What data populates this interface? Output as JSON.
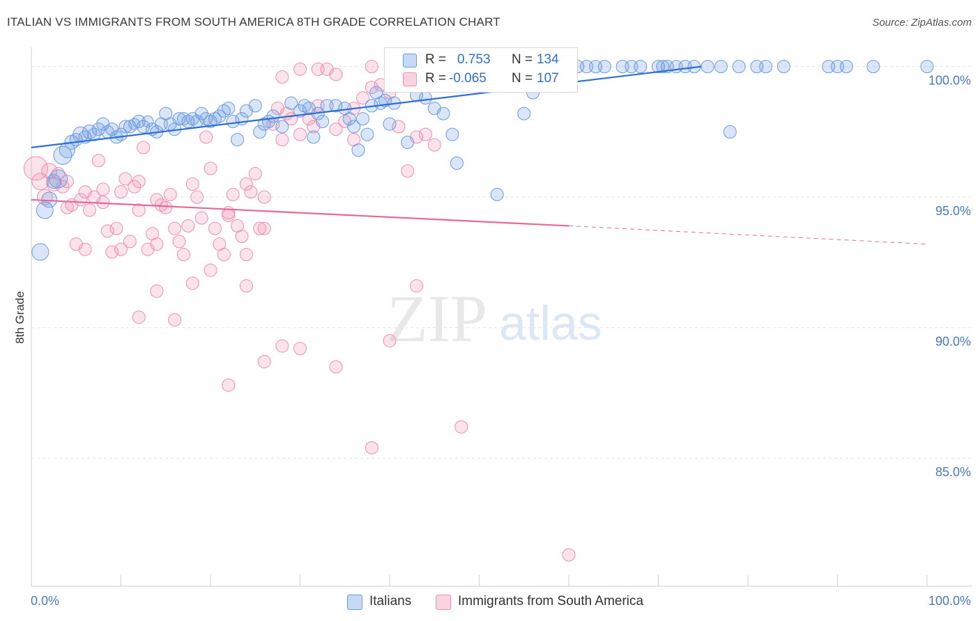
{
  "header": {
    "title": "ITALIAN VS IMMIGRANTS FROM SOUTH AMERICA 8TH GRADE CORRELATION CHART",
    "source": "Source: ZipAtlas.com"
  },
  "legend_stats": {
    "r_label": "R =",
    "n_label": "N =",
    "italians": {
      "r": "0.753",
      "n": "134"
    },
    "immigrants": {
      "r": "-0.065",
      "n": "107"
    }
  },
  "bottom_legend": {
    "italians": "Italians",
    "immigrants": "Immigrants from South America"
  },
  "watermark": {
    "zip": "ZIP",
    "atlas": "atlas"
  },
  "colors": {
    "blue": "#6b9be0",
    "blue_line": "#2f6fd3",
    "pink": "#ee8fb0",
    "pink_line": "#e8669a",
    "tick_label": "#4a78c8"
  },
  "chart_data": {
    "type": "scatter",
    "title": "ITALIAN VS IMMIGRANTS FROM SOUTH AMERICA 8TH GRADE CORRELATION CHART",
    "ylabel": "8th Grade",
    "xlabel": "",
    "xlim": [
      0,
      100
    ],
    "ylim": [
      80.1,
      100.95
    ],
    "x_tick_labels": [
      {
        "value": 0,
        "label": "0.0%"
      },
      {
        "value": 100,
        "label": "100.0%"
      }
    ],
    "x_minor_ticks": [
      0,
      10,
      20,
      30,
      40,
      50,
      60,
      70,
      80,
      90,
      100
    ],
    "y_ticks": [
      {
        "value": 100,
        "label": "100.0%"
      },
      {
        "value": 95,
        "label": "95.0%"
      },
      {
        "value": 90,
        "label": "90.0%"
      },
      {
        "value": 85,
        "label": "85.0%"
      }
    ],
    "grid": true,
    "legend": "top-center",
    "series": [
      {
        "name": "Italians",
        "color": "#6b9be0",
        "trend": {
          "x0": 0,
          "y0": 96.9,
          "x1": 74.8,
          "y1": 100.0,
          "style": "solid"
        },
        "points": [
          [
            1,
            92.9,
            12
          ],
          [
            1.5,
            94.5,
            12
          ],
          [
            2,
            94.9,
            11
          ],
          [
            2.5,
            95.6,
            10
          ],
          [
            3,
            95.7,
            13
          ],
          [
            3.5,
            96.6,
            13
          ],
          [
            4,
            96.8,
            11
          ],
          [
            4.5,
            97.1,
            10
          ],
          [
            5,
            97.2,
            9
          ],
          [
            5.5,
            97.4,
            11
          ],
          [
            6,
            97.3,
            9
          ],
          [
            6.5,
            97.5,
            10
          ],
          [
            7,
            97.4,
            9
          ],
          [
            7.5,
            97.6,
            9
          ],
          [
            8,
            97.8,
            9
          ],
          [
            8.5,
            97.5,
            9
          ],
          [
            9,
            97.6,
            9
          ],
          [
            9.5,
            97.3,
            9
          ],
          [
            10,
            97.4,
            9
          ],
          [
            10.5,
            97.7,
            9
          ],
          [
            11,
            97.7,
            9
          ],
          [
            11.5,
            97.8,
            8
          ],
          [
            12,
            97.9,
            9
          ],
          [
            12.5,
            97.7,
            9
          ],
          [
            13,
            97.9,
            8
          ],
          [
            13.5,
            97.6,
            9
          ],
          [
            14,
            97.5,
            9
          ],
          [
            14.5,
            97.8,
            9
          ],
          [
            15,
            98.2,
            9
          ],
          [
            15.5,
            97.8,
            9
          ],
          [
            16,
            97.6,
            9
          ],
          [
            16.5,
            98.0,
            9
          ],
          [
            17,
            98.0,
            9
          ],
          [
            17.5,
            97.9,
            9
          ],
          [
            18,
            98.0,
            9
          ],
          [
            18.5,
            97.9,
            9
          ],
          [
            19,
            98.2,
            9
          ],
          [
            19.5,
            98.0,
            9
          ],
          [
            20,
            97.9,
            9
          ],
          [
            20.5,
            98.0,
            9
          ],
          [
            21,
            98.1,
            9
          ],
          [
            21.5,
            98.3,
            9
          ],
          [
            22,
            98.4,
            9
          ],
          [
            22.5,
            97.9,
            9
          ],
          [
            23,
            97.2,
            9
          ],
          [
            23.5,
            98.0,
            9
          ],
          [
            24,
            98.3,
            9
          ],
          [
            25,
            98.5,
            9
          ],
          [
            25.5,
            97.5,
            9
          ],
          [
            26,
            97.8,
            9
          ],
          [
            26.5,
            97.9,
            9
          ],
          [
            27,
            98.1,
            9
          ],
          [
            28,
            97.7,
            9
          ],
          [
            29,
            98.6,
            9
          ],
          [
            30,
            98.3,
            9
          ],
          [
            30.5,
            98.5,
            9
          ],
          [
            31,
            98.4,
            9
          ],
          [
            31.5,
            97.3,
            9
          ],
          [
            32,
            98.2,
            9
          ],
          [
            32.5,
            97.9,
            9
          ],
          [
            33,
            98.5,
            9
          ],
          [
            34,
            98.5,
            9
          ],
          [
            35,
            98.4,
            9
          ],
          [
            35.5,
            98.0,
            9
          ],
          [
            36,
            97.7,
            9
          ],
          [
            36.5,
            96.8,
            9
          ],
          [
            37,
            98.0,
            9
          ],
          [
            37.5,
            97.4,
            9
          ],
          [
            38,
            98.5,
            9
          ],
          [
            38.5,
            99.0,
            9
          ],
          [
            39,
            98.6,
            9
          ],
          [
            39.5,
            98.7,
            9
          ],
          [
            40,
            97.8,
            9
          ],
          [
            40.5,
            98.6,
            9
          ],
          [
            41,
            99.3,
            9
          ],
          [
            42,
            97.1,
            9
          ],
          [
            43,
            98.9,
            9
          ],
          [
            44,
            98.8,
            9
          ],
          [
            45,
            98.4,
            9
          ],
          [
            46,
            98.2,
            9
          ],
          [
            47,
            97.4,
            9
          ],
          [
            47.5,
            96.3,
            9
          ],
          [
            48,
            99.9,
            9
          ],
          [
            49,
            99.7,
            9
          ],
          [
            50,
            100.0,
            9
          ],
          [
            51,
            100.0,
            9
          ],
          [
            52,
            95.1,
            9
          ],
          [
            53,
            99.5,
            9
          ],
          [
            54,
            100.0,
            9
          ],
          [
            55,
            98.2,
            9
          ],
          [
            56,
            99.0,
            9
          ],
          [
            57,
            100.0,
            9
          ],
          [
            58,
            100.0,
            9
          ],
          [
            60,
            100.0,
            9
          ],
          [
            61,
            100.0,
            9
          ],
          [
            62,
            100.0,
            9
          ],
          [
            63,
            100.0,
            9
          ],
          [
            64,
            100.0,
            9
          ],
          [
            66,
            100.0,
            9
          ],
          [
            67,
            100.0,
            9
          ],
          [
            68,
            100.0,
            9
          ],
          [
            70,
            100.0,
            9
          ],
          [
            70.5,
            100.0,
            9
          ],
          [
            71,
            100.0,
            9
          ],
          [
            72,
            100.0,
            9
          ],
          [
            73,
            100.0,
            9
          ],
          [
            74,
            100.0,
            9
          ],
          [
            75.5,
            100.0,
            9
          ],
          [
            77,
            100.0,
            9
          ],
          [
            78,
            97.5,
            9
          ],
          [
            79,
            100.0,
            9
          ],
          [
            81,
            100.0,
            9
          ],
          [
            82,
            100.0,
            9
          ],
          [
            84,
            100.0,
            9
          ],
          [
            89,
            100.0,
            9
          ],
          [
            90,
            100.0,
            9
          ],
          [
            91,
            100.0,
            9
          ],
          [
            94,
            100.0,
            9
          ],
          [
            100,
            100.0,
            9
          ]
        ]
      },
      {
        "name": "Immigrants from South America",
        "color": "#ee8fb0",
        "trend": {
          "x0": 0,
          "y0": 94.9,
          "x1": 60,
          "y1": 93.9,
          "x2": 100,
          "y2": 93.2,
          "style": "solid-then-dashed"
        },
        "points": [
          [
            0.5,
            96.1,
            17
          ],
          [
            1,
            95.6,
            12
          ],
          [
            1.5,
            95.0,
            11
          ],
          [
            2,
            96.0,
            11
          ],
          [
            2.5,
            95.5,
            10
          ],
          [
            3,
            95.9,
            9
          ],
          [
            3.5,
            95.4,
            9
          ],
          [
            4,
            94.6,
            9
          ],
          [
            4.5,
            94.7,
            9
          ],
          [
            5,
            93.2,
            9
          ],
          [
            5.5,
            94.9,
            9
          ],
          [
            6,
            95.2,
            9
          ],
          [
            6.5,
            94.5,
            9
          ],
          [
            7,
            95.0,
            9
          ],
          [
            7.5,
            96.4,
            9
          ],
          [
            8,
            94.8,
            9
          ],
          [
            8.5,
            93.7,
            9
          ],
          [
            9,
            92.9,
            9
          ],
          [
            9.5,
            93.8,
            9
          ],
          [
            10,
            95.2,
            9
          ],
          [
            10.5,
            95.7,
            9
          ],
          [
            11,
            93.3,
            9
          ],
          [
            11.5,
            95.4,
            9
          ],
          [
            12,
            94.5,
            9
          ],
          [
            12.5,
            96.9,
            9
          ],
          [
            13,
            93.0,
            9
          ],
          [
            13.5,
            93.6,
            9
          ],
          [
            14,
            93.2,
            9
          ],
          [
            14.5,
            94.7,
            9
          ],
          [
            15,
            94.6,
            9
          ],
          [
            15.5,
            95.1,
            9
          ],
          [
            16,
            93.8,
            9
          ],
          [
            16.5,
            93.3,
            9
          ],
          [
            17,
            92.8,
            9
          ],
          [
            17.5,
            93.9,
            9
          ],
          [
            18,
            95.5,
            9
          ],
          [
            18.5,
            95.0,
            9
          ],
          [
            19,
            94.2,
            9
          ],
          [
            19.5,
            97.3,
            9
          ],
          [
            20,
            96.1,
            9
          ],
          [
            20.5,
            93.8,
            9
          ],
          [
            21,
            93.2,
            9
          ],
          [
            21.5,
            92.8,
            9
          ],
          [
            22,
            94.3,
            9
          ],
          [
            22.5,
            95.1,
            9
          ],
          [
            23,
            93.9,
            9
          ],
          [
            23.5,
            93.5,
            9
          ],
          [
            24,
            92.8,
            9
          ],
          [
            24.5,
            95.2,
            9
          ],
          [
            25,
            95.9,
            9
          ],
          [
            25.5,
            93.8,
            9
          ],
          [
            26,
            93.8,
            9
          ],
          [
            27,
            97.8,
            9
          ],
          [
            27.5,
            98.4,
            9
          ],
          [
            28,
            97.2,
            9
          ],
          [
            28.5,
            98.2,
            9
          ],
          [
            29,
            98.0,
            9
          ],
          [
            30,
            97.4,
            9
          ],
          [
            31,
            98.0,
            9
          ],
          [
            31.5,
            97.7,
            9
          ],
          [
            32,
            98.5,
            9
          ],
          [
            33,
            99.9,
            9
          ],
          [
            34,
            99.7,
            9
          ],
          [
            35,
            97.9,
            9
          ],
          [
            36,
            97.2,
            9
          ],
          [
            37,
            98.8,
            9
          ],
          [
            38,
            99.2,
            9
          ],
          [
            39,
            99.3,
            9
          ],
          [
            40,
            99.0,
            9
          ],
          [
            41,
            97.7,
            9
          ],
          [
            42,
            96.0,
            9
          ],
          [
            43,
            97.3,
            9
          ],
          [
            44,
            97.4,
            9
          ],
          [
            45,
            97.0,
            9
          ],
          [
            12,
            90.4,
            9
          ],
          [
            14,
            91.4,
            9
          ],
          [
            16,
            90.3,
            9
          ],
          [
            18,
            91.7,
            9
          ],
          [
            20,
            92.2,
            9
          ],
          [
            22,
            87.8,
            9
          ],
          [
            24,
            91.6,
            9
          ],
          [
            26,
            88.7,
            9
          ],
          [
            28,
            89.3,
            9
          ],
          [
            30,
            89.2,
            9
          ],
          [
            34,
            88.5,
            9
          ],
          [
            38,
            85.4,
            9
          ],
          [
            40,
            89.5,
            9
          ],
          [
            43,
            91.6,
            9
          ],
          [
            48,
            86.2,
            9
          ],
          [
            60,
            81.3,
            9
          ],
          [
            4,
            95.6,
            9
          ],
          [
            6,
            93.0,
            9
          ],
          [
            8,
            95.3,
            9
          ],
          [
            10,
            93.0,
            9
          ],
          [
            12,
            95.6,
            9
          ],
          [
            14,
            94.9,
            9
          ],
          [
            22,
            94.4,
            9
          ],
          [
            24,
            95.5,
            9
          ],
          [
            26,
            95.0,
            9
          ],
          [
            28,
            99.6,
            9
          ],
          [
            30,
            99.9,
            9
          ],
          [
            32,
            99.9,
            9
          ],
          [
            34,
            97.6,
            9
          ],
          [
            36,
            98.4,
            9
          ],
          [
            38,
            100.0,
            9
          ],
          [
            44,
            99.6,
            9
          ],
          [
            46,
            99.8,
            9
          ]
        ]
      }
    ]
  }
}
